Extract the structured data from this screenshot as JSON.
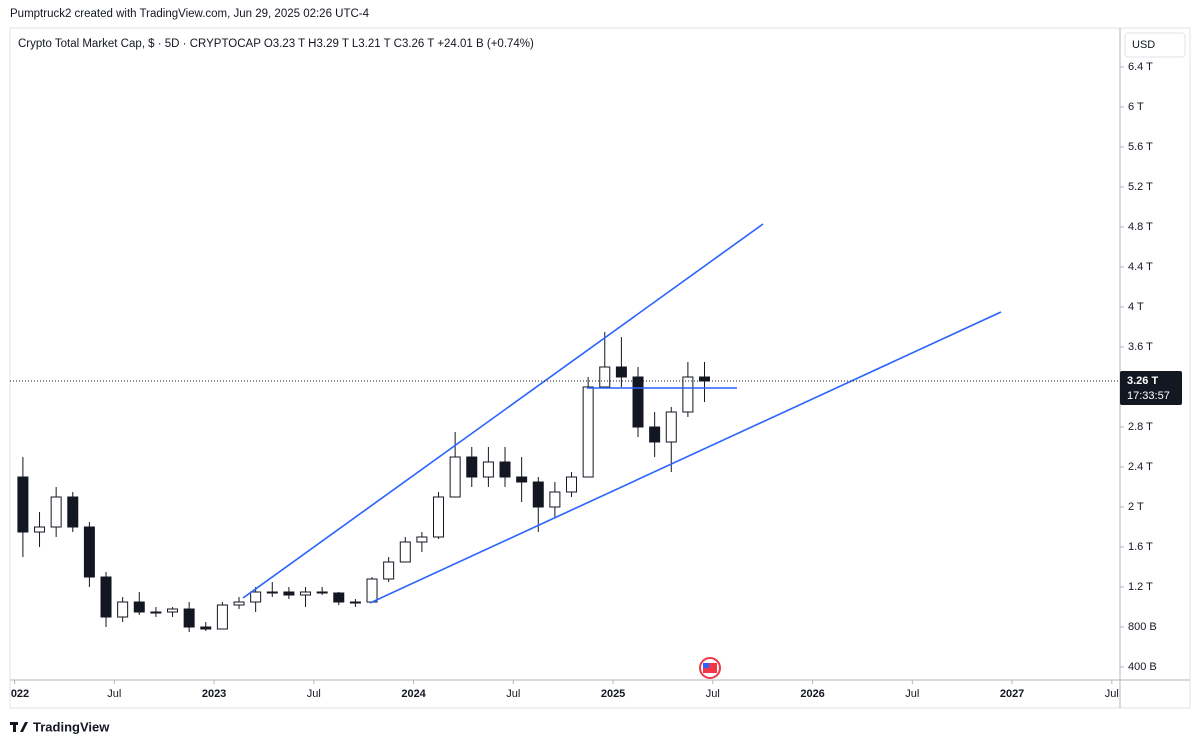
{
  "header": "Pumptruck2 created with TradingView.com, Jun 29, 2025 02:26 UTC-4",
  "footer": "TradingView",
  "chart_data": {
    "type": "candlestick",
    "legend": "Crypto Total Market Cap, $ · 5D · CRYPTOCAP  O3.23 T  H3.29 T  L3.21 T  C3.26 T  +24.01 B (+0.74%)",
    "currency": "USD",
    "x": [
      "2022-01",
      "2022-02",
      "2022-03",
      "2022-04",
      "2022-05",
      "2022-06",
      "2022-07",
      "2022-08",
      "2022-09",
      "2022-10",
      "2022-11",
      "2022-12",
      "2023-01",
      "2023-02",
      "2023-03",
      "2023-04",
      "2023-05",
      "2023-06",
      "2023-07",
      "2023-08",
      "2023-09",
      "2023-10",
      "2023-11",
      "2023-12",
      "2024-01",
      "2024-02",
      "2024-03",
      "2024-04",
      "2024-05",
      "2024-06",
      "2024-07",
      "2024-08",
      "2024-09",
      "2024-10",
      "2024-11",
      "2024-12",
      "2025-01",
      "2025-02",
      "2025-03",
      "2025-04",
      "2025-05",
      "2025-06"
    ],
    "open": [
      2.3,
      1.75,
      1.8,
      2.1,
      1.8,
      1.3,
      0.9,
      1.05,
      0.95,
      0.95,
      0.98,
      0.8,
      0.78,
      1.02,
      1.05,
      1.15,
      1.15,
      1.12,
      1.15,
      1.14,
      1.05,
      1.05,
      1.28,
      1.45,
      1.65,
      1.7,
      2.1,
      2.5,
      2.3,
      2.45,
      2.3,
      2.25,
      2.0,
      2.15,
      2.3,
      3.2,
      3.4,
      3.3,
      2.8,
      2.65,
      2.95,
      3.3
    ],
    "high": [
      2.5,
      1.95,
      2.2,
      2.15,
      1.85,
      1.35,
      1.1,
      1.15,
      1.0,
      1.0,
      1.05,
      0.85,
      1.05,
      1.1,
      1.2,
      1.25,
      1.2,
      1.2,
      1.2,
      1.15,
      1.08,
      1.3,
      1.5,
      1.7,
      1.75,
      2.15,
      2.75,
      2.6,
      2.6,
      2.6,
      2.5,
      2.3,
      2.25,
      2.35,
      3.3,
      3.75,
      3.7,
      3.4,
      2.95,
      3.0,
      3.45,
      3.45
    ],
    "low": [
      1.5,
      1.6,
      1.7,
      1.75,
      1.2,
      0.8,
      0.85,
      0.92,
      0.9,
      0.9,
      0.75,
      0.76,
      0.78,
      0.98,
      0.95,
      1.1,
      1.08,
      1.0,
      1.12,
      1.02,
      1.0,
      1.04,
      1.25,
      1.45,
      1.55,
      1.68,
      2.1,
      2.2,
      2.2,
      2.2,
      2.05,
      1.75,
      1.9,
      2.1,
      2.3,
      3.2,
      3.2,
      2.7,
      2.5,
      2.35,
      2.9,
      3.05
    ],
    "close": [
      1.75,
      1.8,
      2.1,
      1.8,
      1.3,
      0.9,
      1.05,
      0.95,
      0.95,
      0.98,
      0.8,
      0.78,
      1.02,
      1.05,
      1.15,
      1.15,
      1.12,
      1.15,
      1.14,
      1.05,
      1.05,
      1.28,
      1.45,
      1.65,
      1.7,
      2.1,
      2.5,
      2.3,
      2.45,
      2.3,
      2.25,
      2.0,
      2.15,
      2.3,
      3.2,
      3.4,
      3.3,
      2.8,
      2.65,
      2.95,
      3.3,
      3.26
    ],
    "xlim": [
      2021.977,
      2027.541
    ],
    "ylim": [
      0.27,
      6.79
    ],
    "xticks": [
      {
        "value": 2022,
        "label": "022"
      },
      {
        "value": 2022.5,
        "label": "Jul"
      },
      2023,
      {
        "value": 2023.5,
        "label": "Jul"
      },
      2024,
      {
        "value": 2024.5,
        "label": "Jul"
      },
      2025,
      {
        "value": 2025.5,
        "label": "Jul"
      },
      2026,
      {
        "value": 2026.5,
        "label": "Jul"
      },
      2027,
      {
        "value": 2027.5,
        "label": "Jul"
      }
    ],
    "yticks": [
      {
        "value": 0.4,
        "label": "400 B"
      },
      {
        "value": 0.8,
        "label": "800 B"
      },
      {
        "value": 1.2,
        "label": "1.2 T"
      },
      {
        "value": 1.6,
        "label": "1.6 T"
      },
      {
        "value": 2,
        "label": "2 T"
      },
      {
        "value": 2.4,
        "label": "2.4 T"
      },
      {
        "value": 2.8,
        "label": "2.8 T"
      },
      {
        "value": 3.6,
        "label": "3.6 T"
      },
      {
        "value": 4,
        "label": "4 T"
      },
      {
        "value": 4.4,
        "label": "4.4 T"
      },
      {
        "value": 4.8,
        "label": "4.8 T"
      },
      {
        "value": 5.2,
        "label": "5.2 T"
      },
      {
        "value": 5.6,
        "label": "5.6 T"
      },
      {
        "value": 6,
        "label": "6 T"
      },
      {
        "value": 6.4,
        "label": "6.4 T"
      }
    ],
    "last_price_label": "3.26 T",
    "countdown": "17:33:57"
  }
}
